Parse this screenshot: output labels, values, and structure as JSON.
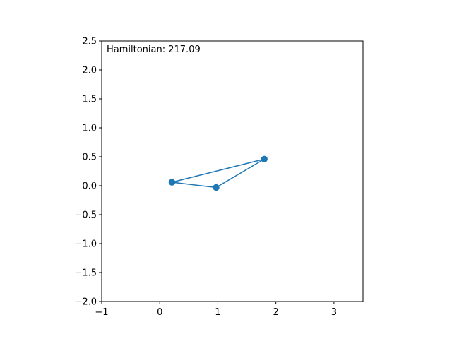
{
  "annotation_text": "Hamiltonian: 217.09",
  "chart_data": {
    "type": "line",
    "title": "",
    "xlabel": "",
    "ylabel": "",
    "xlim": [
      -1,
      3.5
    ],
    "ylim": [
      -2.0,
      2.5
    ],
    "x_ticks": [
      -1,
      0,
      1,
      2,
      3
    ],
    "x_tick_labels": [
      "−1",
      "0",
      "1",
      "2",
      "3"
    ],
    "y_ticks": [
      2.5,
      2.0,
      1.5,
      1.0,
      0.5,
      0.0,
      -0.5,
      -1.0,
      -1.5,
      -2.0
    ],
    "y_tick_labels": [
      "2.5",
      "2.0",
      "1.5",
      "1.0",
      "0.5",
      "0.0",
      "−0.5",
      "−1.0",
      "−1.5",
      "−2.0"
    ],
    "grid": false,
    "series": [
      {
        "color": "#1f77b4",
        "marker": "circle",
        "points": [
          {
            "x": 0.21,
            "y": 0.06
          },
          {
            "x": 0.97,
            "y": -0.03
          },
          {
            "x": 1.8,
            "y": 0.46
          },
          {
            "x": 0.21,
            "y": 0.06
          }
        ]
      }
    ]
  }
}
